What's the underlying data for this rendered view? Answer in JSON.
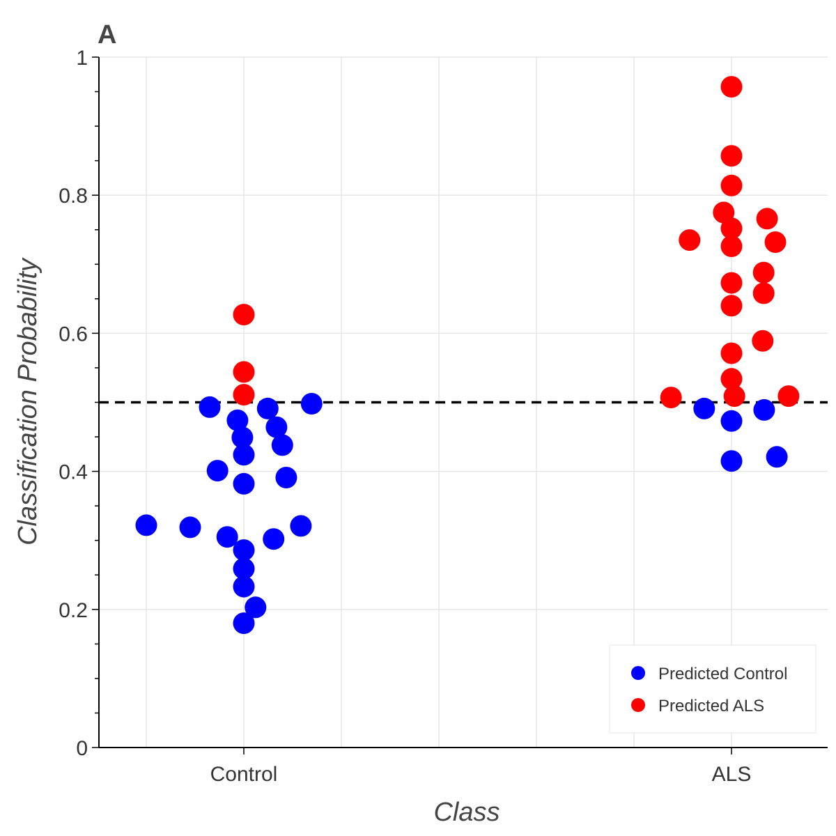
{
  "chart_data": {
    "type": "scatter",
    "panel_label": "A",
    "title": "",
    "xlabel": "Class",
    "ylabel": "Classification Probability",
    "categories": [
      "Control",
      "ALS"
    ],
    "ylim": [
      0,
      1
    ],
    "yticks": [
      {
        "value": 0,
        "label": "0"
      },
      {
        "value": 0.2,
        "label": "0.2"
      },
      {
        "value": 0.4,
        "label": "0.4"
      },
      {
        "value": 0.6,
        "label": "0.6"
      },
      {
        "value": 0.8,
        "label": "0.8"
      },
      {
        "value": 1,
        "label": "1"
      }
    ],
    "threshold": 0.5,
    "grid": true,
    "legend_position": "bottom-right",
    "series": [
      {
        "name": "Predicted Control",
        "color": "#0000ff",
        "points": [
          {
            "x": "Control",
            "offset": -0.2,
            "y": 0.322
          },
          {
            "x": "Control",
            "offset": -0.11,
            "y": 0.319
          },
          {
            "x": "Control",
            "offset": -0.07,
            "y": 0.493
          },
          {
            "x": "Control",
            "offset": -0.054,
            "y": 0.401
          },
          {
            "x": "Control",
            "offset": -0.034,
            "y": 0.305
          },
          {
            "x": "Control",
            "offset": -0.013,
            "y": 0.474
          },
          {
            "x": "Control",
            "offset": -0.003,
            "y": 0.449
          },
          {
            "x": "Control",
            "offset": 0.0,
            "y": 0.424
          },
          {
            "x": "Control",
            "offset": 0.0,
            "y": 0.382
          },
          {
            "x": "Control",
            "offset": 0.0,
            "y": 0.286
          },
          {
            "x": "Control",
            "offset": 0.0,
            "y": 0.259
          },
          {
            "x": "Control",
            "offset": 0.0,
            "y": 0.233
          },
          {
            "x": "Control",
            "offset": 0.0,
            "y": 0.18
          },
          {
            "x": "Control",
            "offset": 0.024,
            "y": 0.203
          },
          {
            "x": "Control",
            "offset": 0.049,
            "y": 0.491
          },
          {
            "x": "Control",
            "offset": 0.061,
            "y": 0.302
          },
          {
            "x": "Control",
            "offset": 0.067,
            "y": 0.464
          },
          {
            "x": "Control",
            "offset": 0.079,
            "y": 0.438
          },
          {
            "x": "Control",
            "offset": 0.087,
            "y": 0.391
          },
          {
            "x": "Control",
            "offset": 0.117,
            "y": 0.321
          },
          {
            "x": "Control",
            "offset": 0.139,
            "y": 0.498
          },
          {
            "x": "ALS",
            "offset": -0.056,
            "y": 0.491
          },
          {
            "x": "ALS",
            "offset": 0.0,
            "y": 0.473
          },
          {
            "x": "ALS",
            "offset": 0.0,
            "y": 0.415
          },
          {
            "x": "ALS",
            "offset": 0.067,
            "y": 0.489
          },
          {
            "x": "ALS",
            "offset": 0.093,
            "y": 0.421
          }
        ]
      },
      {
        "name": "Predicted ALS",
        "color": "#ff0000",
        "points": [
          {
            "x": "Control",
            "offset": 0.0,
            "y": 0.627
          },
          {
            "x": "Control",
            "offset": 0.0,
            "y": 0.544
          },
          {
            "x": "Control",
            "offset": 0.0,
            "y": 0.511
          },
          {
            "x": "ALS",
            "offset": -0.124,
            "y": 0.507
          },
          {
            "x": "ALS",
            "offset": -0.086,
            "y": 0.735
          },
          {
            "x": "ALS",
            "offset": -0.016,
            "y": 0.775
          },
          {
            "x": "ALS",
            "offset": 0.0,
            "y": 0.957
          },
          {
            "x": "ALS",
            "offset": 0.0,
            "y": 0.857
          },
          {
            "x": "ALS",
            "offset": 0.0,
            "y": 0.814
          },
          {
            "x": "ALS",
            "offset": 0.0,
            "y": 0.752
          },
          {
            "x": "ALS",
            "offset": 0.0,
            "y": 0.726
          },
          {
            "x": "ALS",
            "offset": 0.0,
            "y": 0.673
          },
          {
            "x": "ALS",
            "offset": 0.0,
            "y": 0.64
          },
          {
            "x": "ALS",
            "offset": 0.0,
            "y": 0.571
          },
          {
            "x": "ALS",
            "offset": 0.0,
            "y": 0.534
          },
          {
            "x": "ALS",
            "offset": 0.006,
            "y": 0.509
          },
          {
            "x": "ALS",
            "offset": 0.064,
            "y": 0.589
          },
          {
            "x": "ALS",
            "offset": 0.066,
            "y": 0.688
          },
          {
            "x": "ALS",
            "offset": 0.066,
            "y": 0.658
          },
          {
            "x": "ALS",
            "offset": 0.073,
            "y": 0.766
          },
          {
            "x": "ALS",
            "offset": 0.09,
            "y": 0.732
          },
          {
            "x": "ALS",
            "offset": 0.117,
            "y": 0.509
          }
        ]
      }
    ]
  }
}
